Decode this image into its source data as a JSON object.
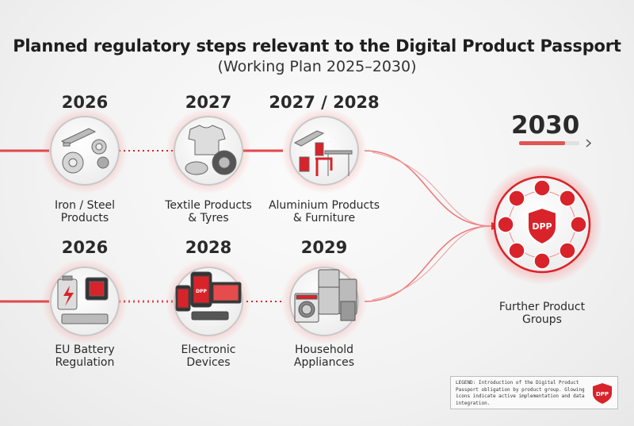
{
  "title": "Planned regulatory steps relevant to the Digital Product Passport",
  "subtitle": "(Working Plan 2025–2030)",
  "steps": [
    {
      "year": "2026",
      "label_line1": "Iron / Steel",
      "label_line2": "Products",
      "icon": "steel-beams-icon"
    },
    {
      "year": "2027",
      "label_line1": "Textile Products",
      "label_line2": "& Tyres",
      "icon": "tshirt-tyre-icon"
    },
    {
      "year": "2027 / 2028",
      "label_line1": "Aluminium Products",
      "label_line2": "& Furniture",
      "icon": "aluminium-furniture-icon"
    },
    {
      "year": "2026",
      "label_line1": "EU Battery",
      "label_line2": "Regulation",
      "icon": "battery-icon"
    },
    {
      "year": "2028",
      "label_line1": "Electronic",
      "label_line2": "Devices",
      "icon": "electronic-devices-icon"
    },
    {
      "year": "2029",
      "label_line1": "Household",
      "label_line2": "Appliances",
      "icon": "household-appliances-icon"
    }
  ],
  "final": {
    "year": "2030",
    "label_line1": "Further Product",
    "label_line2": "Groups",
    "badge": "DPP"
  },
  "device_badge": "DPP",
  "legend": {
    "text": "LEGEND: Introduction of the Digital Product Passport obligation by product group. Glowing icons indicate active implementation and data integration.",
    "badge": "DPP"
  },
  "colors": {
    "accent": "#d8232a",
    "glow": "#f7b3b3",
    "ink": "#2a2a2a"
  }
}
